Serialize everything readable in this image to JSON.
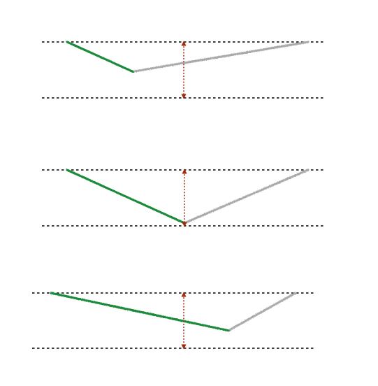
{
  "colors": {
    "background": "#ffffff",
    "guide_line": "#000000",
    "left_segment": "#1f8a3a",
    "right_segment": "#a9a9a9",
    "arrow": "#a02a0a"
  },
  "panels": [
    {
      "name": "panel-top",
      "vertex_position": "left-of-arrow",
      "vertex_depth": 0.53
    },
    {
      "name": "panel-middle",
      "vertex_position": "at-arrow",
      "vertex_depth": 0.95
    },
    {
      "name": "panel-bottom",
      "vertex_position": "right-of-arrow",
      "vertex_depth": 0.68
    }
  ]
}
